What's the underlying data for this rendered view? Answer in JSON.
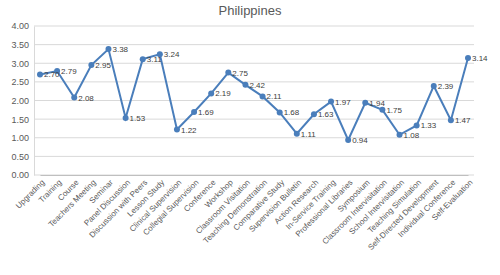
{
  "chart_data": {
    "type": "line",
    "title": "Philippines",
    "categories": [
      "Upgrading",
      "Training",
      "Course",
      "Teachers Meeting",
      "Seminar",
      "Panel Discussion",
      "Discussion with Peers",
      "Lesson Study",
      "Clinical Supervision",
      "Collegial Supervision",
      "Conference",
      "Workshop",
      "Classroom Visitation",
      "Teaching Demonstration",
      "Comparative Study",
      "Supervision Bulletin",
      "Action Research",
      "In-Service Training",
      "Professional Libraries",
      "Symposium",
      "Classroom Intervisitation",
      "School Intervisitation",
      "Teaching Simulation",
      "Self-Directed Development",
      "Individual Conference",
      "Self-Evaluation"
    ],
    "values": [
      2.7,
      2.79,
      2.08,
      2.95,
      3.38,
      1.53,
      3.11,
      3.24,
      1.22,
      1.69,
      2.19,
      2.75,
      2.42,
      2.11,
      1.68,
      1.11,
      1.63,
      1.97,
      0.94,
      1.94,
      1.75,
      1.08,
      1.33,
      2.39,
      1.47,
      3.14
    ],
    "value_labels": [
      "2.70",
      "2.79",
      "2.08",
      "2.95",
      "3.38",
      "1.53",
      "3.11",
      "3.24",
      "1.22",
      "1.69",
      "2.19",
      "2.75",
      "2.42",
      "2.11",
      "1.68",
      "1.11",
      "1.63",
      "1.97",
      "0.94",
      "1.94",
      "1.75",
      "1.08",
      "1.33",
      "2.39",
      "1.47",
      "3.14"
    ],
    "color": "#4a7ebb",
    "marker": "circle",
    "data_labels": true,
    "grid": true,
    "ylim": [
      0,
      4
    ],
    "yticks": [
      {
        "value": 0,
        "label": "0.00"
      },
      {
        "value": 0.5,
        "label": "0.50"
      },
      {
        "value": 1,
        "label": "1.00"
      },
      {
        "value": 1.5,
        "label": "1.50"
      },
      {
        "value": 2,
        "label": "2.00"
      },
      {
        "value": 2.5,
        "label": "2.50"
      },
      {
        "value": 3,
        "label": "3.00"
      },
      {
        "value": 3.5,
        "label": "3.50"
      },
      {
        "value": 4,
        "label": "4.00"
      }
    ]
  }
}
